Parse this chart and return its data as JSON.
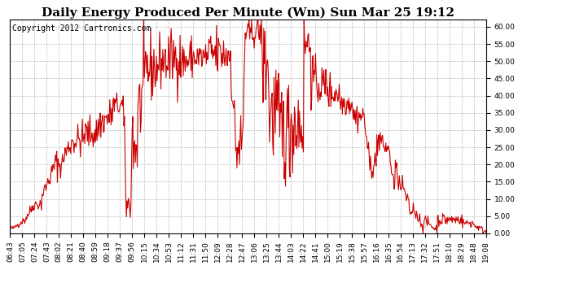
{
  "title": "Daily Energy Produced Per Minute (Wm) Sun Mar 25 19:12",
  "copyright": "Copyright 2012 Cartronics.com",
  "line_color": "#cc0000",
  "bg_color": "#ffffff",
  "plot_bg_color": "#ffffff",
  "grid_color": "#aaaaaa",
  "ylim": [
    0,
    62
  ],
  "yticks": [
    0.0,
    5.0,
    10.0,
    15.0,
    20.0,
    25.0,
    30.0,
    35.0,
    40.0,
    45.0,
    50.0,
    55.0,
    60.0
  ],
  "title_fontsize": 11,
  "copyright_fontsize": 7,
  "tick_fontsize": 6.5,
  "line_width": 0.8,
  "xtick_labels": [
    "06:43",
    "07:05",
    "07:24",
    "07:43",
    "08:02",
    "08:21",
    "08:40",
    "08:59",
    "09:18",
    "09:37",
    "09:56",
    "10:15",
    "10:34",
    "10:53",
    "11:12",
    "11:31",
    "11:50",
    "12:09",
    "12:28",
    "12:47",
    "13:06",
    "13:25",
    "13:44",
    "14:03",
    "14:22",
    "14:41",
    "15:00",
    "15:19",
    "15:38",
    "15:57",
    "16:16",
    "16:35",
    "16:54",
    "17:13",
    "17:32",
    "17:51",
    "18:10",
    "18:29",
    "18:48",
    "19:08"
  ]
}
